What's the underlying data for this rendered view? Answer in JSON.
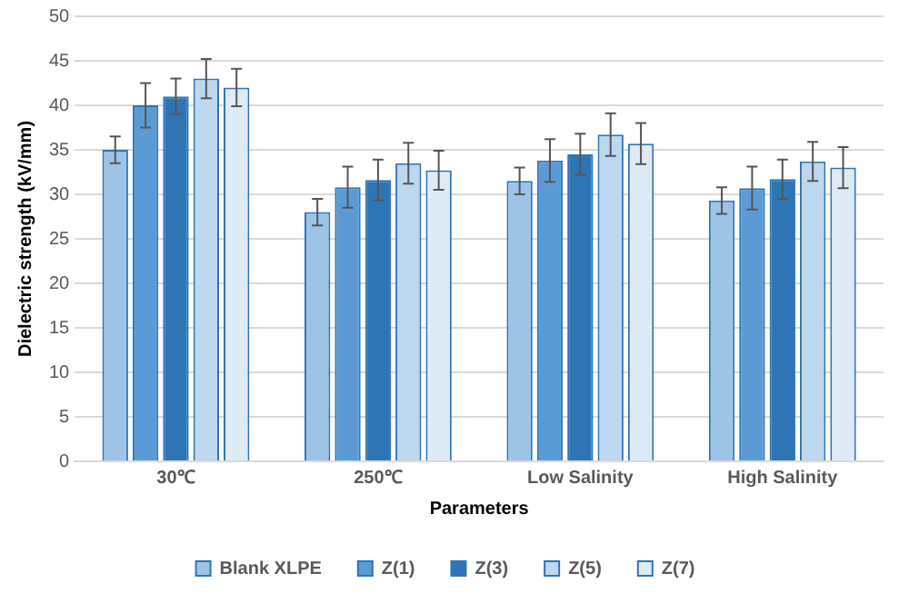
{
  "chart_data": {
    "type": "bar",
    "xlabel": "Parameters",
    "ylabel": "Dielectric strength (kV/mm)",
    "categories": [
      "30℃",
      "250℃",
      "Low Salinity",
      "High Salinity"
    ],
    "series": [
      {
        "name": "Blank XLPE",
        "color": "#9dc3e6",
        "values": [
          35,
          28,
          31.5,
          29.3
        ],
        "errors": [
          1.5,
          1.5,
          1.5,
          1.5
        ]
      },
      {
        "name": "Z(1)",
        "color": "#5b9bd5",
        "values": [
          40,
          30.8,
          33.8,
          30.7
        ],
        "errors": [
          2.5,
          2.3,
          2.4,
          2.4
        ]
      },
      {
        "name": "Z(3)",
        "color": "#2e75b6",
        "values": [
          41,
          31.6,
          34.5,
          31.7
        ],
        "errors": [
          2,
          2.3,
          2.3,
          2.2
        ]
      },
      {
        "name": "Z(5)",
        "color": "#bdd7ee",
        "values": [
          43,
          33.5,
          36.7,
          33.7
        ],
        "errors": [
          2.2,
          2.3,
          2.4,
          2.2
        ]
      },
      {
        "name": "Z(7)",
        "color": "#deebf7",
        "values": [
          42,
          32.7,
          35.7,
          33
        ],
        "errors": [
          2.1,
          2.2,
          2.3,
          2.3
        ]
      }
    ],
    "ylim": [
      0,
      50
    ],
    "yticks": [
      0,
      5,
      10,
      15,
      20,
      25,
      30,
      35,
      40,
      45,
      50
    ],
    "grid": "y",
    "legend": "bottom"
  }
}
